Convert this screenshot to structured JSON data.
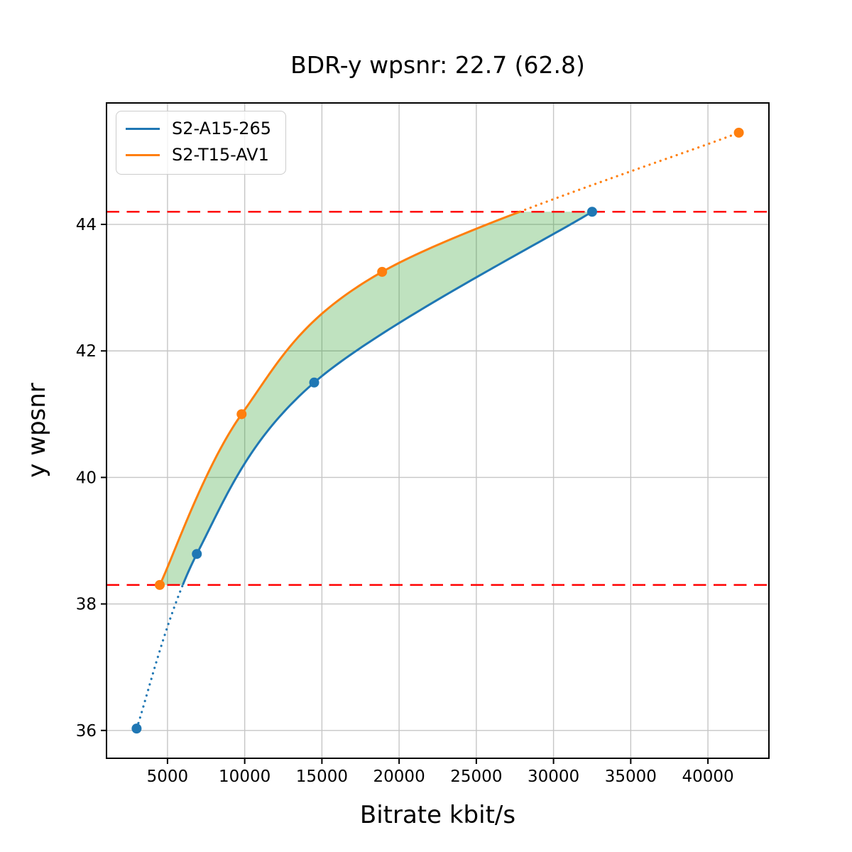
{
  "chart_data": {
    "type": "line",
    "title": "BDR-y wpsnr: 22.7 (62.8)",
    "xlabel": "Bitrate kbit/s",
    "ylabel": "y wpsnr",
    "xlim": [
      1050,
      43950
    ],
    "ylim": [
      35.56,
      45.92
    ],
    "xticks": [
      5000,
      10000,
      15000,
      20000,
      25000,
      30000,
      35000,
      40000
    ],
    "yticks": [
      36,
      38,
      40,
      42,
      44
    ],
    "grid": true,
    "grid_color": "#c6c6c6",
    "legend_position": "upper left",
    "series": [
      {
        "name": "S2-A15-265",
        "color": "#1f77b4",
        "marker": "circle",
        "x": [
          3000,
          6900,
          14500,
          32500
        ],
        "y": [
          36.03,
          38.79,
          41.5,
          44.2
        ],
        "dotted_segment": "below_lower_hline"
      },
      {
        "name": "S2-T15-AV1",
        "color": "#ff7f0e",
        "marker": "circle",
        "x": [
          4500,
          9800,
          18900,
          42000
        ],
        "y": [
          38.3,
          41.0,
          43.25,
          45.45
        ],
        "dotted_segment": "above_upper_hline"
      }
    ],
    "hlines": {
      "values": [
        38.3,
        44.2
      ],
      "color": "#ff0000",
      "style": "dashed"
    },
    "band_fill": {
      "color": "#2ca02c",
      "alpha": 0.3,
      "between": "curves clipped to hline range"
    }
  }
}
